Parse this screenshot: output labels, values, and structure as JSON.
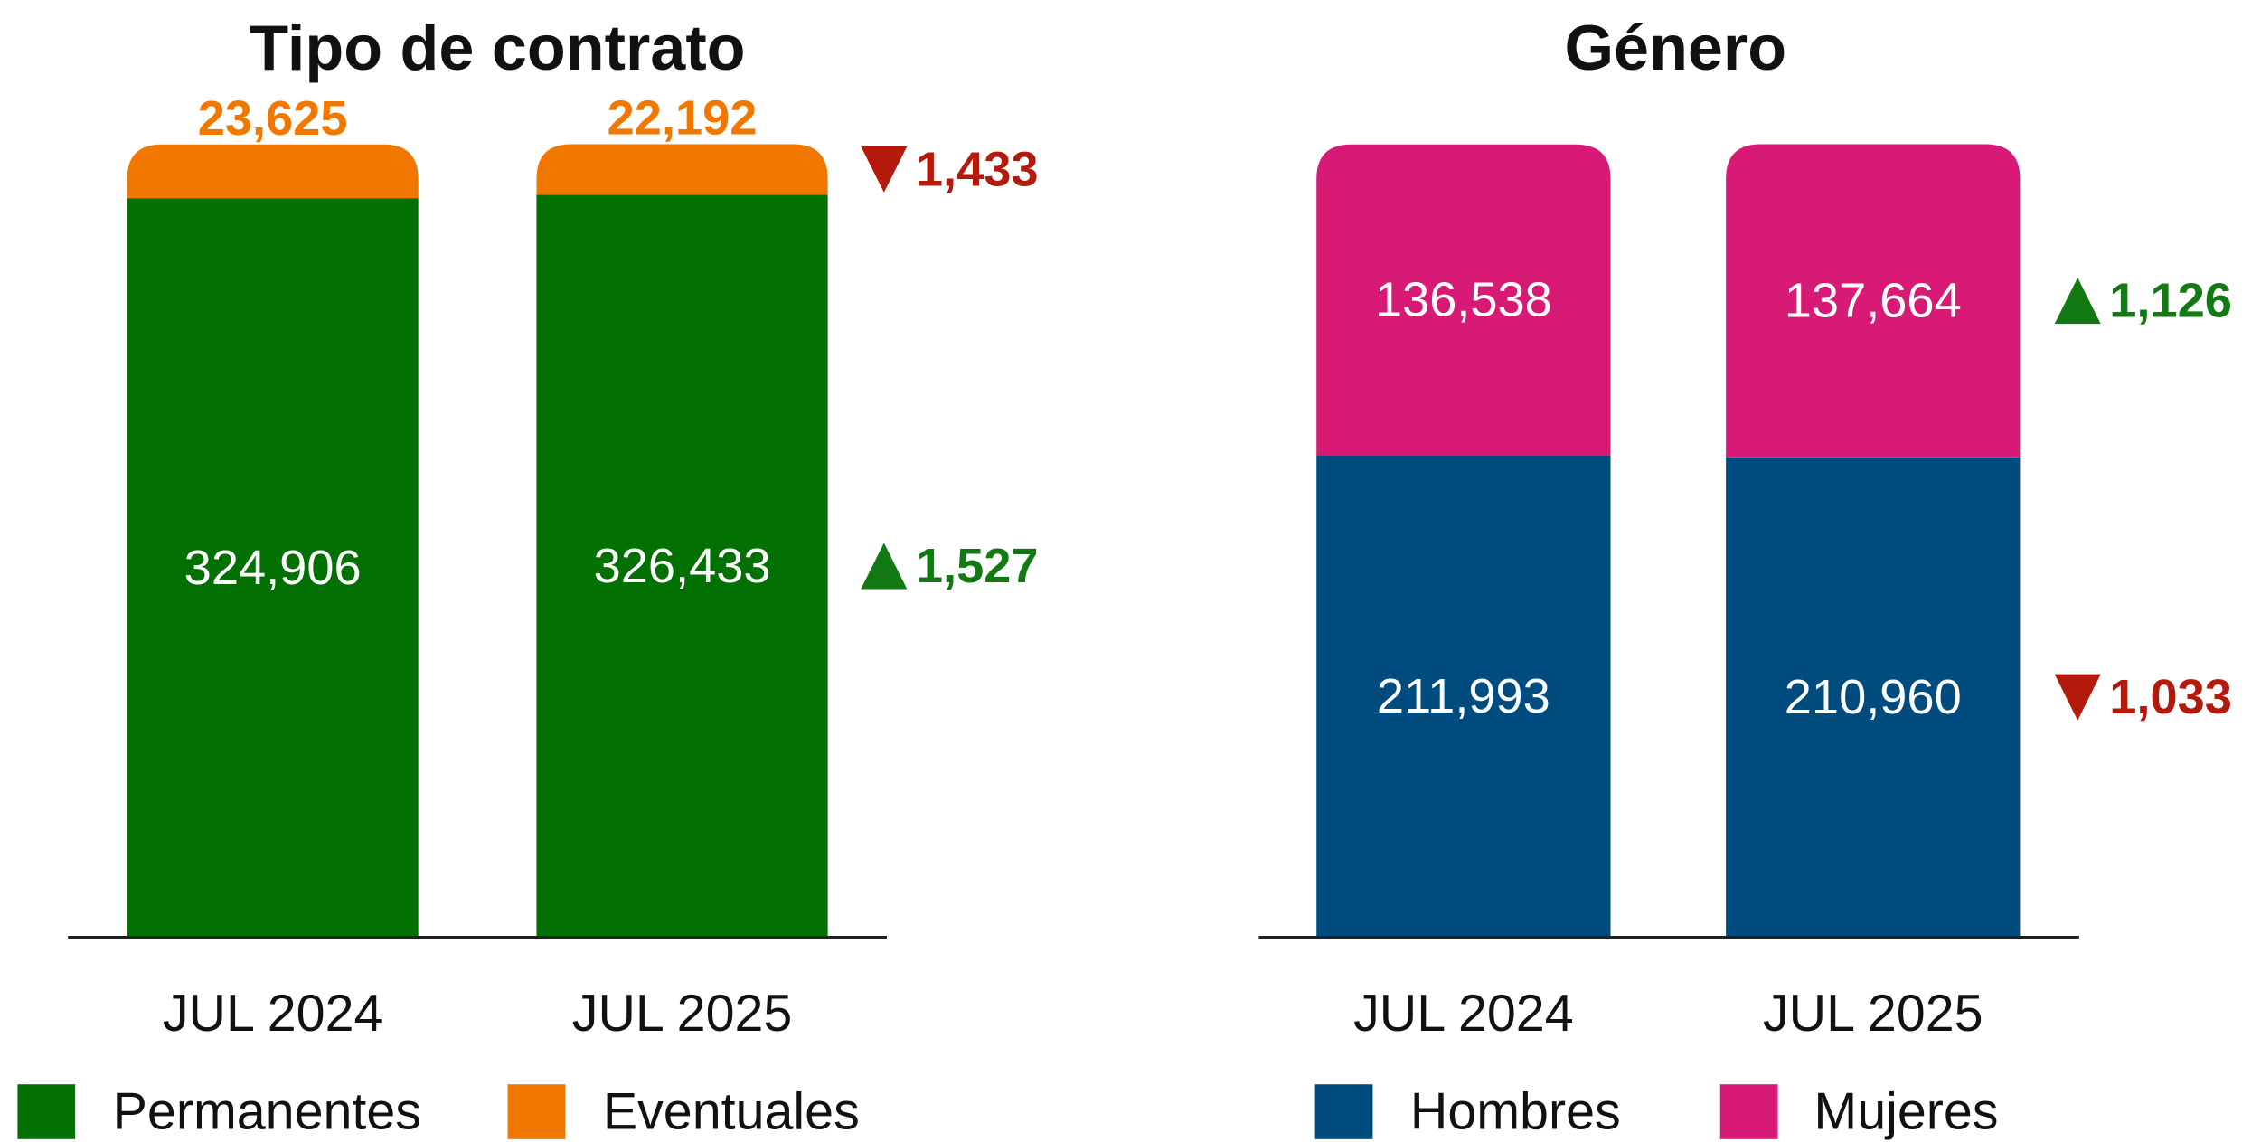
{
  "chart_data": [
    {
      "type": "stacked_bar",
      "title": "Tipo de contrato",
      "categories": [
        "JUL 2024",
        "JUL 2025"
      ],
      "series": [
        {
          "name": "Permanentes",
          "color": "#037003",
          "values": [
            324906,
            326433
          ],
          "value_labels": [
            "324,906",
            "326,433"
          ]
        },
        {
          "name": "Eventuales",
          "color": "#f07800",
          "values": [
            23625,
            22192
          ],
          "value_labels": [
            "23,625",
            "22,192"
          ]
        }
      ],
      "annotations": [
        {
          "series": 1,
          "value": -1433,
          "label": "1,433"
        },
        {
          "series": 0,
          "value": 1527,
          "label": "1,527"
        }
      ],
      "up_color": "#137a13",
      "down_color": "#b31a0c",
      "legend": "bottom"
    },
    {
      "type": "stacked_bar",
      "title": "Género",
      "categories": [
        "JUL 2024",
        "JUL 2025"
      ],
      "series": [
        {
          "name": "Hombres",
          "color": "#004c7f",
          "values": [
            211993,
            210960
          ],
          "value_labels": [
            "211,993",
            "210,960"
          ]
        },
        {
          "name": "Mujeres",
          "color": "#d61a75",
          "values": [
            136538,
            137664
          ],
          "value_labels": [
            "136,538",
            "137,664"
          ]
        }
      ],
      "annotations": [
        {
          "series": 1,
          "value": 1126,
          "label": "1,126"
        },
        {
          "series": 0,
          "value": -1033,
          "label": "1,033"
        }
      ],
      "up_color": "#137a13",
      "down_color": "#b31a0c",
      "legend": "bottom"
    }
  ]
}
